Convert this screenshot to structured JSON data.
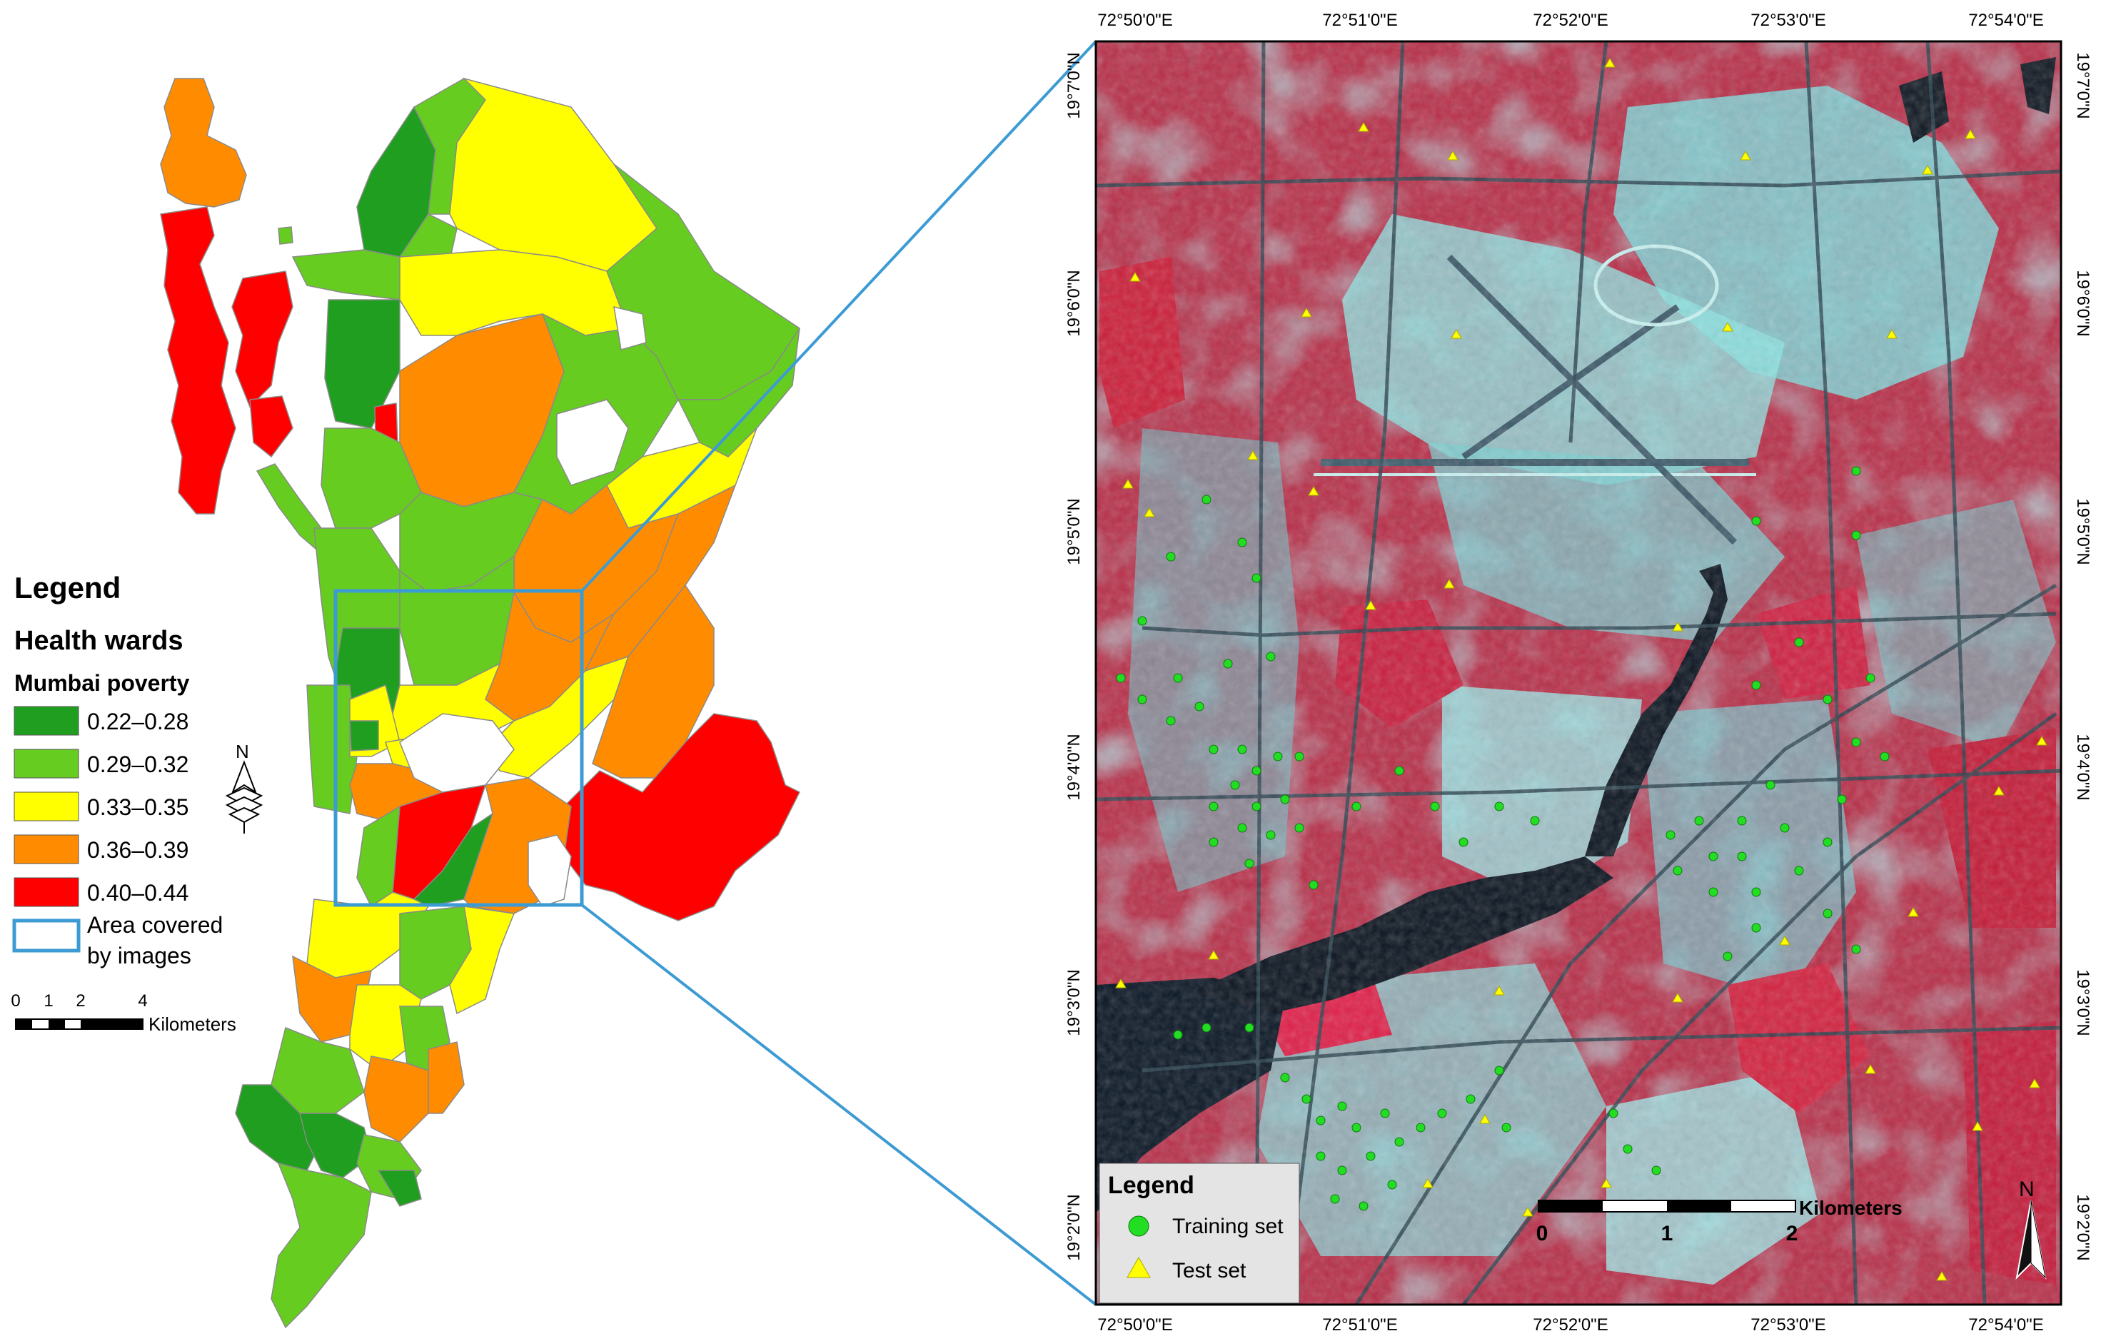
{
  "left_map": {
    "legend": {
      "title": "Legend",
      "subtitle": "Health wards",
      "group": "Mumbai poverty",
      "classes": [
        {
          "label": "0.22–0.28",
          "color": "#1f9e1f"
        },
        {
          "label": "0.29–0.32",
          "color": "#66cc1f"
        },
        {
          "label": "0.33–0.35",
          "color": "#ffff00"
        },
        {
          "label": "0.36–0.39",
          "color": "#ff8c00"
        },
        {
          "label": "0.40–0.44",
          "color": "#ff0000"
        }
      ],
      "area_label_line1": "Area covered",
      "area_label_line2": "by images",
      "area_color": "#3d9bd4"
    },
    "scalebar": {
      "ticks": [
        "0",
        "1",
        "2",
        "4"
      ],
      "unit": "Kilometers"
    },
    "north_letter": "N"
  },
  "right_map": {
    "top_labels": [
      "72°50'0\"E",
      "72°51'0\"E",
      "72°52'0\"E",
      "72°53'0\"E",
      "72°54'0\"E"
    ],
    "bottom_labels": [
      "72°50'0\"E",
      "72°51'0\"E",
      "72°52'0\"E",
      "72°53'0\"E",
      "72°54'0\"E"
    ],
    "lat_labels": [
      "19°7'0\"N",
      "19°6'0\"N",
      "19°5'0\"N",
      "19°4'0\"N",
      "19°3'0\"N",
      "19°2'0\"N"
    ],
    "legend": {
      "title": "Legend",
      "training_label": "Training set",
      "test_label": "Test set",
      "training_color": "#22dd22",
      "test_color": "#ffff00"
    },
    "scalebar": {
      "ticks": [
        "0",
        "1",
        "2"
      ],
      "unit": "Kilometers"
    },
    "north_letter": "N"
  }
}
